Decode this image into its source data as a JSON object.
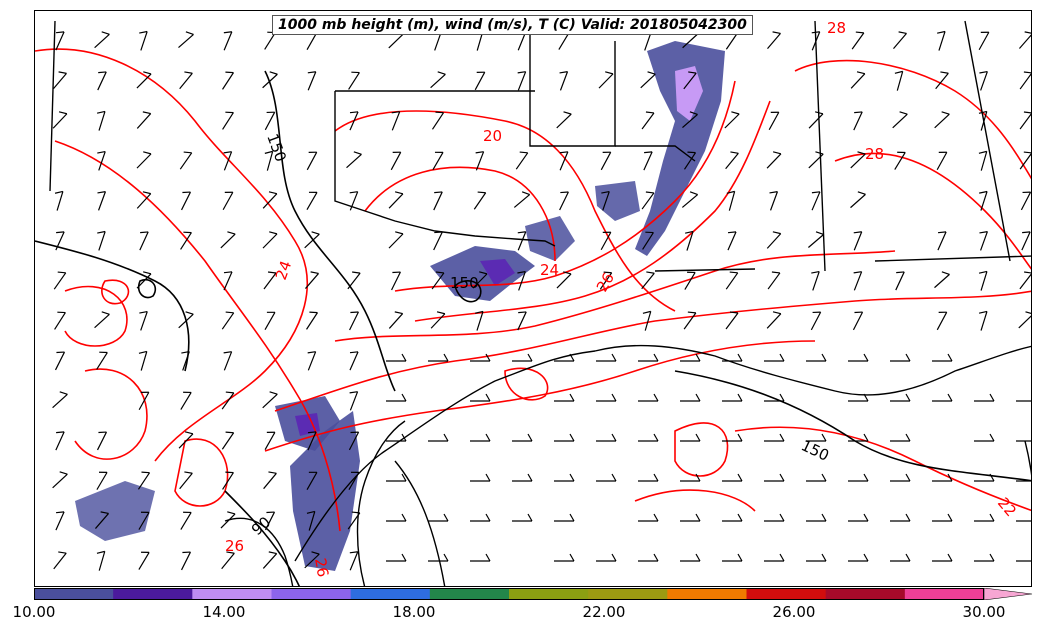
{
  "title": "1000 mb height (m), wind (m/s), T (C) Valid: 201805042300",
  "colorbar": {
    "colors": [
      "#4a4f9c",
      "#4b1a9c",
      "#bf8df2",
      "#8c64ea",
      "#2e6de0",
      "#23864a",
      "#8b9f12",
      "#9c9a12",
      "#f07a00",
      "#d10d0d",
      "#a60a2a",
      "#ee3f97",
      "#f7a6d3"
    ],
    "tick_labels": [
      "10.00",
      "14.00",
      "18.00",
      "22.00",
      "26.00",
      "30.00"
    ]
  },
  "colors": {
    "temperature_contour": "#ff0000",
    "height_contour": "#000000",
    "boundaries": "#000000",
    "precip_low": "#4a4f9c",
    "precip_mid": "#5b2bb3",
    "precip_high": "#c79af5"
  },
  "contour_labels": {
    "height": [
      "150",
      "150",
      "150",
      "90"
    ],
    "temperature": [
      "20",
      "24",
      "24",
      "28",
      "28",
      "22",
      "26",
      "26",
      "26"
    ]
  }
}
